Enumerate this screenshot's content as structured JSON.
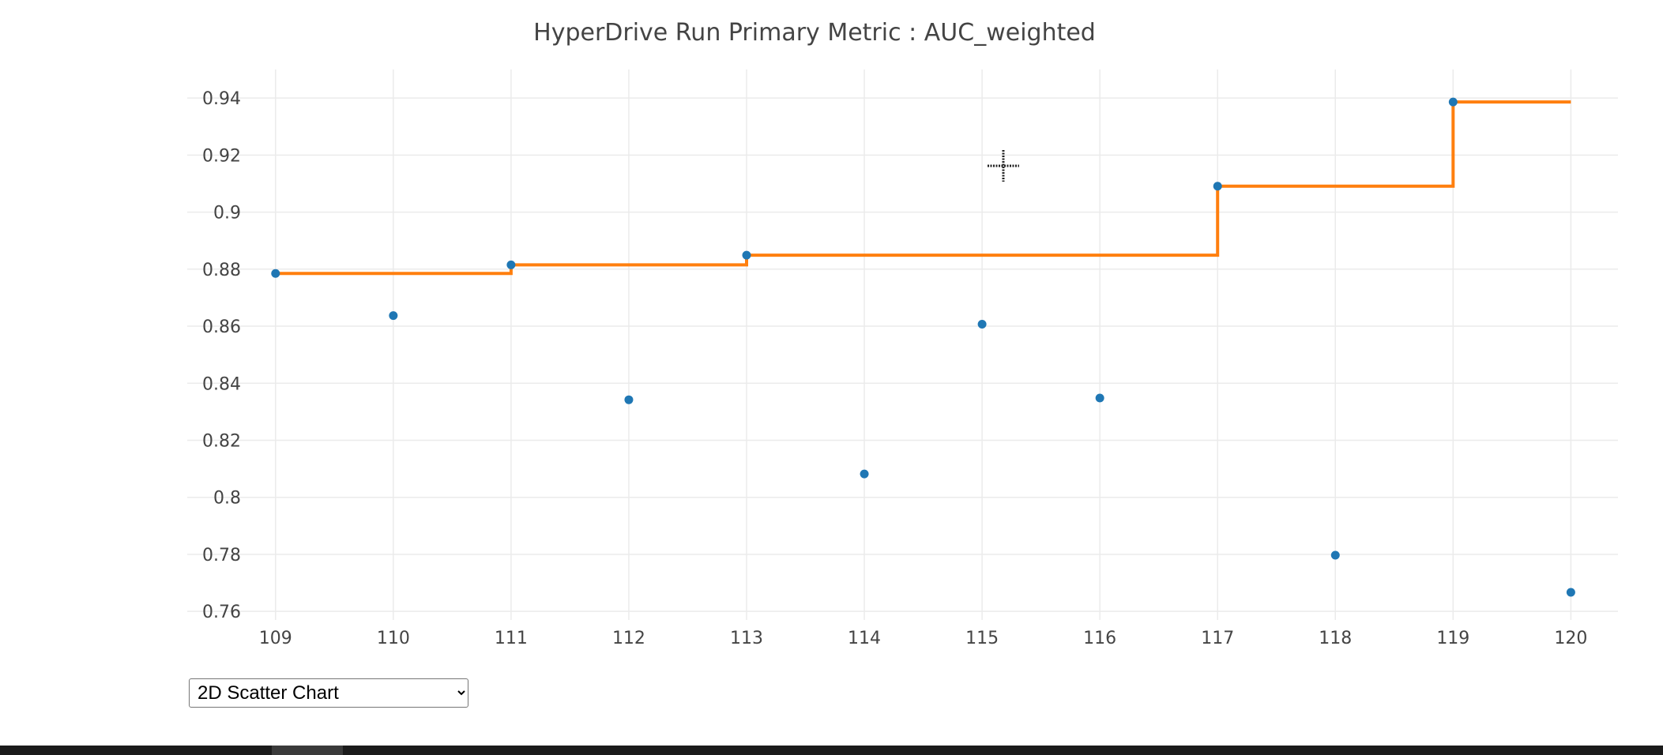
{
  "chart_data": {
    "type": "scatter",
    "title": "HyperDrive Run Primary Metric : AUC_weighted",
    "xlabel": "",
    "ylabel": "",
    "x_ticks": [
      109,
      110,
      111,
      112,
      113,
      114,
      115,
      116,
      117,
      118,
      119,
      120
    ],
    "y_ticks": [
      0.76,
      0.78,
      0.8,
      0.82,
      0.84,
      0.86,
      0.88,
      0.9,
      0.92,
      0.94
    ],
    "y_tick_labels": [
      "0.76",
      "0.78",
      "0.8",
      "0.82",
      "0.84",
      "0.86",
      "0.88",
      "0.9",
      "0.92",
      "0.94"
    ],
    "xlim": [
      108.25,
      120.4
    ],
    "ylim": [
      0.757,
      0.95
    ],
    "grid": true,
    "legend": "none",
    "series": [
      {
        "kind": "scatter",
        "color": "#1f77b4",
        "x": [
          109,
          110,
          111,
          112,
          113,
          114,
          115,
          116,
          117,
          118,
          119,
          120
        ],
        "y": [
          0.8785,
          0.8637,
          0.8815,
          0.8342,
          0.8849,
          0.8082,
          0.8607,
          0.8348,
          0.9091,
          0.7797,
          0.9386,
          0.7667
        ]
      },
      {
        "kind": "step",
        "color": "#ff7f0e",
        "x": [
          109,
          110,
          111,
          112,
          113,
          114,
          115,
          116,
          117,
          118,
          119,
          120
        ],
        "y": [
          0.8785,
          0.8785,
          0.8815,
          0.8815,
          0.8849,
          0.8849,
          0.8849,
          0.8849,
          0.9091,
          0.9091,
          0.9386,
          0.9386
        ]
      }
    ]
  },
  "controls": {
    "chart_type_select": {
      "selected": "2D Scatter Chart",
      "options": [
        "2D Scatter Chart"
      ]
    }
  }
}
